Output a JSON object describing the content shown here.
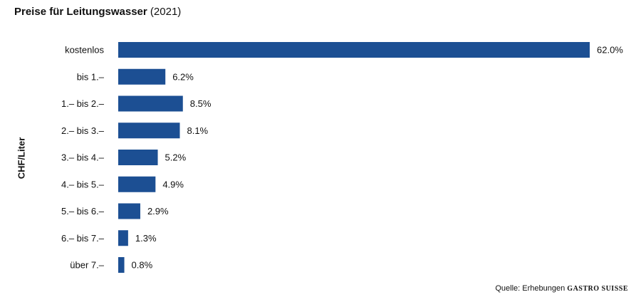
{
  "title_bold": "Preise für Leitungswasser",
  "title_year": "(2021)",
  "source_text": "Quelle: Erhebungen",
  "source_brand": "GASTRO SUISSE",
  "chart_data": {
    "type": "bar",
    "orientation": "horizontal",
    "title": "Preise für Leitungswasser (2021)",
    "ylabel": "CHF/Liter",
    "xlabel": "",
    "categories": [
      "kostenlos",
      "bis 1.–",
      "1.– bis 2.–",
      "2.– bis 3.–",
      "3.– bis 4.–",
      "4.– bis 5.–",
      "5.– bis 6.–",
      "6.– bis 7.–",
      "über 7.–"
    ],
    "values": [
      62.0,
      6.2,
      8.5,
      8.1,
      5.2,
      4.9,
      2.9,
      1.3,
      0.8
    ],
    "value_labels": [
      "62.0%",
      "6.2%",
      "8.5%",
      "8.1%",
      "5.2%",
      "4.9%",
      "2.9%",
      "1.3%",
      "0.8%"
    ],
    "bar_color": "#1c4f93",
    "grid": false,
    "legend": "none"
  }
}
